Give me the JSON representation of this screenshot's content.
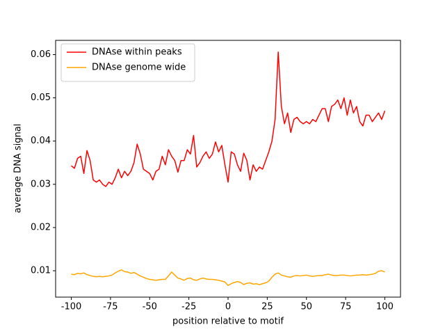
{
  "chart_data": {
    "type": "line",
    "x_label": "position relative to motif",
    "y_label": "average DNA signal",
    "x": [
      -100,
      -98,
      -96,
      -94,
      -92,
      -90,
      -88,
      -86,
      -84,
      -82,
      -80,
      -78,
      -76,
      -74,
      -72,
      -70,
      -68,
      -66,
      -64,
      -62,
      -60,
      -58,
      -56,
      -54,
      -52,
      -50,
      -48,
      -46,
      -44,
      -42,
      -40,
      -38,
      -36,
      -34,
      -32,
      -30,
      -28,
      -26,
      -24,
      -22,
      -20,
      -18,
      -16,
      -14,
      -12,
      -10,
      -8,
      -6,
      -4,
      -2,
      0,
      2,
      4,
      6,
      8,
      10,
      12,
      14,
      16,
      18,
      20,
      22,
      24,
      26,
      28,
      30,
      32,
      34,
      36,
      38,
      40,
      42,
      44,
      46,
      48,
      50,
      52,
      54,
      56,
      58,
      60,
      62,
      64,
      66,
      68,
      70,
      72,
      74,
      76,
      78,
      80,
      82,
      84,
      86,
      88,
      90,
      92,
      94,
      96,
      98,
      100
    ],
    "series": [
      {
        "name": "DNAse within peaks",
        "color": "#ff0000",
        "values": [
          0.0343,
          0.0337,
          0.036,
          0.0365,
          0.0325,
          0.0378,
          0.0355,
          0.031,
          0.0305,
          0.031,
          0.03,
          0.0295,
          0.0305,
          0.03,
          0.0315,
          0.0335,
          0.0315,
          0.033,
          0.032,
          0.033,
          0.035,
          0.0393,
          0.037,
          0.0335,
          0.033,
          0.0325,
          0.031,
          0.033,
          0.0335,
          0.0365,
          0.0345,
          0.038,
          0.0365,
          0.0355,
          0.0328,
          0.0355,
          0.0355,
          0.038,
          0.037,
          0.0413,
          0.034,
          0.035,
          0.0365,
          0.0375,
          0.036,
          0.037,
          0.0398,
          0.0375,
          0.039,
          0.0345,
          0.0305,
          0.0375,
          0.037,
          0.0345,
          0.033,
          0.0372,
          0.0355,
          0.031,
          0.0345,
          0.033,
          0.034,
          0.0335,
          0.0355,
          0.0375,
          0.04,
          0.045,
          0.0606,
          0.048,
          0.044,
          0.0465,
          0.042,
          0.045,
          0.0455,
          0.0445,
          0.044,
          0.0445,
          0.044,
          0.045,
          0.0445,
          0.046,
          0.0475,
          0.0475,
          0.0445,
          0.048,
          0.0485,
          0.0495,
          0.0475,
          0.05,
          0.046,
          0.0495,
          0.0465,
          0.048,
          0.0445,
          0.0435,
          0.046,
          0.046,
          0.0445,
          0.0455,
          0.0465,
          0.045,
          0.047
        ]
      },
      {
        "name": "DNAse genome wide",
        "color": "#ffa500",
        "values": [
          0.0092,
          0.0091,
          0.0094,
          0.0093,
          0.0095,
          0.0091,
          0.0089,
          0.0087,
          0.0086,
          0.0087,
          0.0086,
          0.0087,
          0.0088,
          0.009,
          0.0095,
          0.0099,
          0.0102,
          0.0098,
          0.0097,
          0.0094,
          0.0096,
          0.0092,
          0.0088,
          0.0085,
          0.0082,
          0.008,
          0.0079,
          0.0078,
          0.0079,
          0.008,
          0.008,
          0.0088,
          0.0097,
          0.009,
          0.0083,
          0.0081,
          0.0078,
          0.0082,
          0.0083,
          0.0079,
          0.0078,
          0.0081,
          0.0083,
          0.0081,
          0.008,
          0.008,
          0.0079,
          0.0078,
          0.0076,
          0.0074,
          0.0066,
          0.007,
          0.0073,
          0.0075,
          0.0073,
          0.0068,
          0.0071,
          0.0072,
          0.0069,
          0.007,
          0.0068,
          0.007,
          0.0072,
          0.0076,
          0.0085,
          0.0092,
          0.0095,
          0.009,
          0.0088,
          0.0086,
          0.0085,
          0.0088,
          0.0089,
          0.0088,
          0.0089,
          0.009,
          0.0088,
          0.0087,
          0.0088,
          0.0089,
          0.0089,
          0.0091,
          0.0092,
          0.009,
          0.0089,
          0.0089,
          0.009,
          0.009,
          0.0089,
          0.0088,
          0.0089,
          0.009,
          0.009,
          0.0091,
          0.009,
          0.0091,
          0.0092,
          0.0094,
          0.0099,
          0.01,
          0.0097
        ]
      }
    ],
    "xlim": [
      -110,
      110
    ],
    "xticks": [
      -100,
      -75,
      -50,
      -25,
      0,
      25,
      50,
      75,
      100
    ],
    "ylim": [
      0.0039,
      0.0633
    ],
    "yticks": [
      0.01,
      0.02,
      0.03,
      0.04,
      0.05,
      0.06
    ],
    "legend": "upper left",
    "grid": false
  }
}
